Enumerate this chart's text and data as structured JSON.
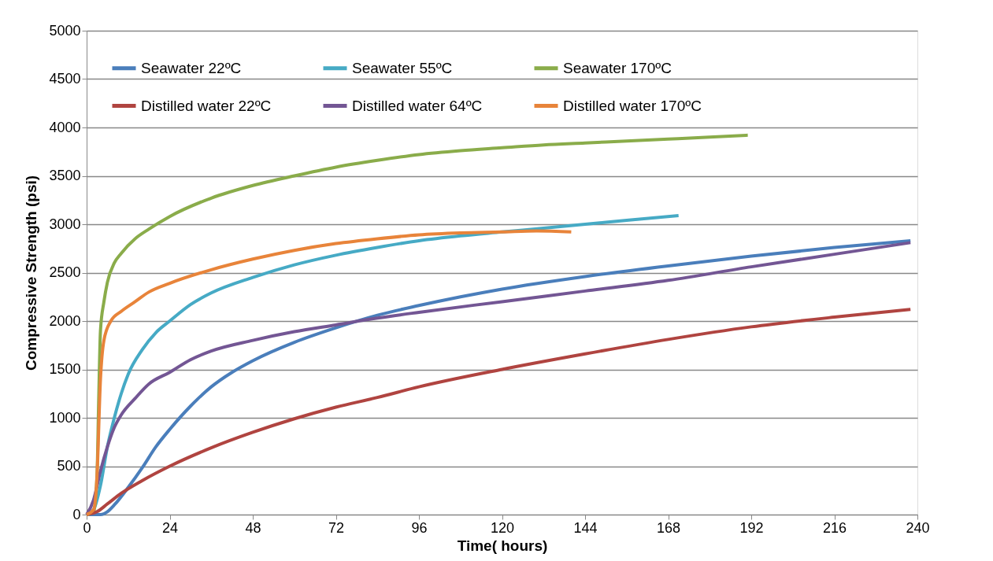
{
  "chart_data": {
    "type": "line",
    "xlabel": "Time( hours)",
    "ylabel": "Compressive  Strength (psi)",
    "xlim": [
      0,
      240
    ],
    "xticks": [
      0,
      24,
      48,
      72,
      96,
      120,
      144,
      168,
      192,
      216,
      240
    ],
    "ylim": [
      0,
      5000
    ],
    "yticks": [
      0,
      500,
      1000,
      1500,
      2000,
      2500,
      3000,
      3500,
      4000,
      4500,
      5000
    ],
    "grid": "y",
    "legend": "top",
    "marker": "none",
    "line_style": "solid",
    "series": [
      {
        "name": "Seawater 22ºC",
        "color": "#4a7ebb",
        "x": [
          0,
          4,
          6,
          8,
          12,
          16,
          20,
          24,
          30,
          36,
          42,
          48,
          60,
          72,
          84,
          96,
          108,
          120,
          144,
          168,
          192,
          216,
          238
        ],
        "values": [
          0,
          0,
          30,
          100,
          280,
          480,
          700,
          880,
          1120,
          1320,
          1470,
          1590,
          1780,
          1930,
          2060,
          2160,
          2250,
          2330,
          2460,
          2570,
          2670,
          2760,
          2830
        ]
      },
      {
        "name": "Seawater 55ºC",
        "color": "#46aac5",
        "x": [
          0,
          2,
          4,
          6,
          8,
          10,
          12,
          16,
          20,
          24,
          30,
          36,
          48,
          60,
          72,
          84,
          96,
          108,
          120,
          132,
          144,
          156,
          171
        ],
        "values": [
          0,
          50,
          300,
          700,
          1000,
          1250,
          1450,
          1700,
          1880,
          2000,
          2170,
          2290,
          2450,
          2580,
          2680,
          2760,
          2830,
          2880,
          2920,
          2960,
          3000,
          3040,
          3090
        ]
      },
      {
        "name": "Seawater 170ºC",
        "color": "#8aac4a",
        "x": [
          0,
          2,
          3,
          3.5,
          4,
          5,
          6,
          8,
          10,
          14,
          18,
          24,
          36,
          48,
          60,
          72,
          84,
          96,
          108,
          120,
          132,
          144,
          156,
          168,
          180,
          191
        ],
        "values": [
          0,
          20,
          400,
          1200,
          1900,
          2200,
          2400,
          2600,
          2700,
          2850,
          2950,
          3080,
          3270,
          3400,
          3500,
          3590,
          3660,
          3720,
          3760,
          3790,
          3820,
          3840,
          3860,
          3880,
          3900,
          3920
        ]
      },
      {
        "name": "Distilled water 22ºC",
        "color": "#b04440",
        "x": [
          0,
          3,
          6,
          10,
          16,
          24,
          36,
          48,
          60,
          72,
          84,
          96,
          120,
          144,
          168,
          192,
          216,
          238
        ],
        "values": [
          0,
          30,
          110,
          220,
          350,
          500,
          690,
          850,
          990,
          1110,
          1210,
          1320,
          1500,
          1660,
          1810,
          1940,
          2040,
          2120
        ]
      },
      {
        "name": "Distilled water 64ºC",
        "color": "#735694",
        "x": [
          0,
          2,
          4,
          6,
          8,
          10,
          14,
          18,
          24,
          30,
          36,
          48,
          60,
          72,
          84,
          96,
          120,
          144,
          168,
          192,
          216,
          238
        ],
        "values": [
          0,
          150,
          450,
          700,
          900,
          1030,
          1200,
          1350,
          1470,
          1600,
          1690,
          1800,
          1890,
          1960,
          2030,
          2090,
          2200,
          2310,
          2420,
          2560,
          2690,
          2810
        ]
      },
      {
        "name": "Distilled water 170ºC",
        "color": "#e8843a",
        "x": [
          0,
          2,
          3,
          4,
          5,
          7,
          10,
          14,
          18,
          24,
          36,
          48,
          60,
          72,
          84,
          96,
          108,
          120,
          130,
          140
        ],
        "values": [
          0,
          50,
          400,
          1400,
          1800,
          2000,
          2100,
          2200,
          2300,
          2390,
          2530,
          2640,
          2730,
          2800,
          2850,
          2890,
          2910,
          2920,
          2930,
          2920
        ]
      }
    ]
  }
}
